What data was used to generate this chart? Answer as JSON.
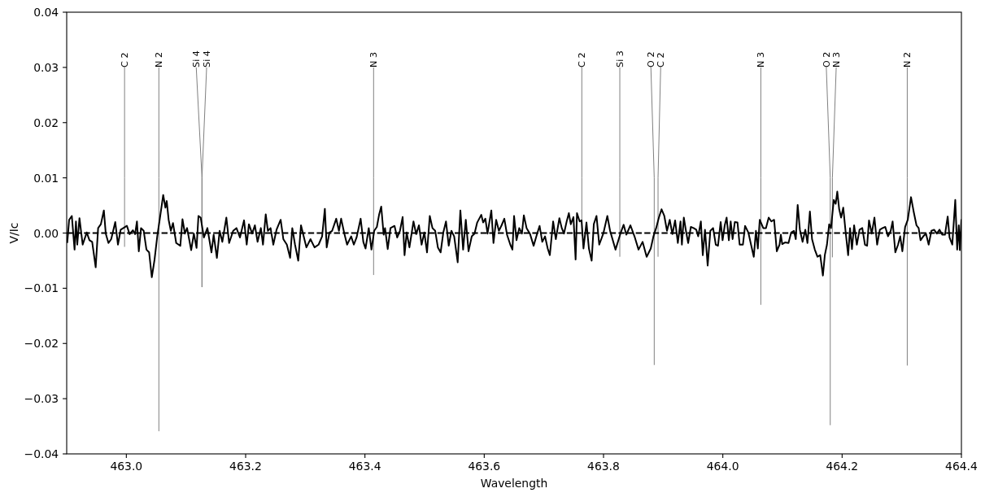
{
  "chart_data": {
    "type": "line",
    "xlabel": "Wavelength",
    "ylabel": "V/Ic",
    "xlim": [
      462.9,
      464.4
    ],
    "ylim": [
      -0.04,
      0.04
    ],
    "xticks": [
      {
        "value": 463.0,
        "label": "463.0"
      },
      {
        "value": 463.2,
        "label": "463.2"
      },
      {
        "value": 463.4,
        "label": "463.4"
      },
      {
        "value": 463.6,
        "label": "463.6"
      },
      {
        "value": 463.8,
        "label": "463.8"
      },
      {
        "value": 464.0,
        "label": "464.0"
      },
      {
        "value": 464.2,
        "label": "464.2"
      },
      {
        "value": 464.4,
        "label": "464.4"
      }
    ],
    "yticks": [
      {
        "value": -0.04,
        "label": "−0.04"
      },
      {
        "value": -0.03,
        "label": "−0.03"
      },
      {
        "value": -0.02,
        "label": "−0.02"
      },
      {
        "value": -0.01,
        "label": "−0.01"
      },
      {
        "value": 0,
        "label": "0.00"
      },
      {
        "value": 0.01,
        "label": "0.01"
      },
      {
        "value": 0.02,
        "label": "0.02"
      },
      {
        "value": 0.03,
        "label": "0.03"
      },
      {
        "value": 0.04,
        "label": "0.04"
      }
    ],
    "ref_lines": [
      {
        "axis": "y",
        "value": 0,
        "color": "#000000",
        "line_style": "dashed"
      }
    ],
    "series": [
      {
        "color": "#000000",
        "x": [
          462.9009,
          462.9041,
          462.9086,
          462.9132,
          462.9155,
          462.9177,
          462.9214,
          462.9268,
          462.9336,
          462.9382,
          462.9427,
          462.9486,
          462.9527,
          462.9573,
          462.9623,
          462.9655,
          462.97,
          462.9746,
          462.9814,
          462.9859,
          462.9905,
          462.995,
          463.0009,
          463.0055,
          463.0109,
          463.0146,
          463.0178,
          463.0209,
          463.0246,
          463.0291,
          463.0337,
          463.0382,
          463.0427,
          463.0473,
          463.0518,
          463.0564,
          463.0618,
          463.0655,
          463.0677,
          463.0709,
          463.0746,
          463.0782,
          463.0836,
          463.0905,
          463.0941,
          463.0982,
          463.1018,
          463.1087,
          463.1132,
          463.1177,
          463.1209,
          463.1246,
          463.13,
          463.1359,
          463.1427,
          463.1464,
          463.1518,
          463.1564,
          463.1609,
          463.1677,
          463.1723,
          463.1791,
          463.1846,
          463.1905,
          463.1973,
          463.2018,
          463.2055,
          463.2109,
          463.2155,
          463.22,
          463.2255,
          463.2291,
          463.2337,
          463.2373,
          463.2418,
          463.2464,
          463.2518,
          463.2587,
          463.2632,
          463.2691,
          463.2746,
          463.2782,
          463.2828,
          463.2882,
          463.2928,
          463.2973,
          463.3019,
          463.3087,
          463.3155,
          463.3223,
          463.3282,
          463.3328,
          463.3359,
          463.3405,
          463.345,
          463.3519,
          463.3564,
          463.3601,
          463.3655,
          463.3701,
          463.3769,
          463.3814,
          463.386,
          463.3928,
          463.3973,
          463.401,
          463.4064,
          463.4109,
          463.4155,
          463.42,
          463.4237,
          463.4273,
          463.4314,
          463.4337,
          463.4382,
          463.4428,
          463.4496,
          463.4541,
          463.4587,
          463.4632,
          463.4664,
          463.47,
          463.4746,
          463.4814,
          463.4859,
          463.4905,
          463.495,
          463.4996,
          463.5041,
          463.5087,
          463.5132,
          463.5178,
          463.5223,
          463.5269,
          463.5314,
          463.5359,
          463.5405,
          463.545,
          463.5496,
          463.5555,
          463.56,
          463.5646,
          463.5691,
          463.5737,
          463.5791,
          463.5837,
          463.5882,
          463.595,
          463.5982,
          463.6019,
          463.6055,
          463.6119,
          463.6155,
          463.62,
          463.6246,
          463.6291,
          463.6337,
          463.6382,
          463.6437,
          463.6473,
          463.65,
          463.6541,
          463.6587,
          463.6632,
          463.6664,
          463.671,
          463.6769,
          463.6828,
          463.6882,
          463.6928,
          463.6973,
          463.7019,
          463.7064,
          463.71,
          463.7155,
          463.72,
          463.726,
          463.73,
          463.7337,
          463.7382,
          463.7419,
          463.7451,
          463.7496,
          463.7532,
          463.7555,
          463.76,
          463.7632,
          463.7664,
          463.7714,
          463.7755,
          463.7801,
          463.7837,
          463.7882,
          463.7928,
          463.7996,
          463.8064,
          463.811,
          463.8201,
          463.8283,
          463.8337,
          463.8382,
          463.8451,
          463.8519,
          463.8587,
          463.8655,
          463.8723,
          463.8792,
          463.8837,
          463.8882,
          463.8928,
          463.8973,
          463.9019,
          463.9064,
          463.911,
          463.9155,
          463.92,
          463.9246,
          463.9291,
          463.9314,
          463.9346,
          463.9382,
          463.9419,
          463.9464,
          463.951,
          463.9555,
          463.9587,
          463.9632,
          463.9664,
          463.9701,
          463.9746,
          463.9791,
          463.9837,
          463.9882,
          463.9919,
          463.9964,
          463.9996,
          464.0032,
          464.0064,
          464.0101,
          464.0132,
          464.0164,
          464.0201,
          464.0246,
          464.0282,
          464.0337,
          464.0373,
          464.0428,
          464.0473,
          464.0519,
          464.0555,
          464.0587,
          464.0619,
          464.0678,
          464.0723,
          464.0769,
          464.0814,
          464.086,
          464.0905,
          464.0951,
          464.0973,
          464.0996,
          464.1042,
          464.1101,
          464.1146,
          464.1192,
          464.1223,
          464.1255,
          464.1292,
          464.1337,
          464.1383,
          464.1419,
          464.146,
          464.1496,
          464.1542,
          464.1587,
          464.1633,
          464.1678,
          464.171,
          464.1746,
          464.1783,
          464.1814,
          464.186,
          464.1892,
          464.1919,
          464.1951,
          464.1983,
          464.2019,
          464.2055,
          464.2101,
          464.2133,
          464.2165,
          464.2201,
          464.2247,
          464.2292,
          464.2338,
          464.2383,
          464.2419,
          464.2451,
          464.2497,
          464.2542,
          464.2587,
          464.2633,
          464.2678,
          464.2724,
          464.2769,
          464.2815,
          464.2847,
          464.2892,
          464.2938,
          464.2974,
          464.301,
          464.3056,
          464.3101,
          464.3155,
          464.3201,
          464.3247,
          464.3283,
          464.3315,
          464.336,
          464.3406,
          464.3451,
          464.3497,
          464.3542,
          464.3588,
          464.3633,
          464.3679,
          464.3724,
          464.377,
          464.3801,
          464.3847,
          464.3897,
          464.3929,
          464.3956,
          464.3974,
          464.4
        ],
        "values": [
          -0.0018,
          0.0024,
          0.0031,
          -0.003,
          0.0021,
          -0.0021,
          0.0027,
          -0.0021,
          0.0001,
          -0.0013,
          -0.0016,
          -0.0062,
          0.0009,
          0.0016,
          0.0041,
          -0.0001,
          -0.0018,
          -0.0011,
          0.002,
          -0.0021,
          0.0006,
          0.0009,
          0.0013,
          -0.0002,
          0.0005,
          -0.0002,
          0.0021,
          -0.0033,
          0.0009,
          0.0004,
          -0.003,
          -0.0035,
          -0.008,
          -0.0048,
          -0.0006,
          0.0028,
          0.0069,
          0.0046,
          0.0058,
          0.0024,
          0.0004,
          0.0018,
          -0.0018,
          -0.0023,
          0.0025,
          -0.0001,
          0.0009,
          -0.0031,
          -0.0001,
          -0.0027,
          0.0031,
          0.0028,
          -0.0008,
          0.0009,
          -0.0035,
          -0.0003,
          -0.0045,
          0.0004,
          -0.0016,
          0.0028,
          -0.0018,
          0.0004,
          0.0009,
          -0.0008,
          0.0023,
          -0.0021,
          0.0016,
          -0.0001,
          0.0014,
          -0.0016,
          0.0009,
          -0.0021,
          0.0034,
          0.0004,
          0.0009,
          -0.0021,
          0.0006,
          0.0024,
          -0.0011,
          -0.0021,
          -0.0045,
          0.0009,
          -0.0021,
          -0.005,
          0.0014,
          -0.0006,
          -0.0026,
          -0.0011,
          -0.0026,
          -0.0021,
          -0.0006,
          0.0044,
          -0.0026,
          0.0001,
          0.0004,
          0.0026,
          0.0004,
          0.0026,
          -0.0001,
          -0.0021,
          -0.0006,
          -0.0021,
          -0.0008,
          0.0026,
          -0.0016,
          -0.0028,
          0.0009,
          -0.003,
          0.0004,
          0.0011,
          0.0033,
          0.0048,
          -0.0003,
          0.0009,
          -0.0029,
          0.0009,
          0.0013,
          -0.0008,
          0.0004,
          0.0029,
          -0.004,
          0.0001,
          -0.0026,
          0.0021,
          -0.0002,
          0.0014,
          -0.0021,
          0.0001,
          -0.0035,
          0.0031,
          0.0009,
          0.0004,
          -0.0026,
          -0.0035,
          0.0001,
          0.0021,
          -0.0023,
          0.0004,
          -0.0006,
          -0.0053,
          0.0041,
          -0.003,
          0.0024,
          -0.0033,
          -0.0006,
          -0.0001,
          0.0019,
          0.0033,
          0.0019,
          0.0026,
          -0.0001,
          0.0041,
          -0.0018,
          0.0024,
          0.0004,
          0.0014,
          0.0026,
          -0.0003,
          -0.0021,
          -0.003,
          0.0031,
          -0.0013,
          0.0009,
          -0.0001,
          0.0032,
          0.0009,
          -0.0002,
          -0.0023,
          -0.0003,
          0.0013,
          -0.0016,
          -0.0006,
          -0.0028,
          -0.004,
          0.0021,
          -0.0011,
          0.0027,
          0.0009,
          -0.0001,
          0.0021,
          0.0036,
          0.0016,
          0.0029,
          -0.0048,
          0.0036,
          0.0021,
          0.0023,
          -0.0028,
          0.0019,
          -0.0028,
          -0.005,
          0.0016,
          0.0031,
          -0.0021,
          -0.0001,
          0.0031,
          0.0004,
          -0.003,
          -0.0001,
          0.0015,
          -0.0003,
          0.0014,
          -0.0006,
          -0.003,
          -0.0016,
          -0.0043,
          -0.0028,
          -0.0006,
          0.0009,
          0.0028,
          0.0043,
          0.0031,
          0.0004,
          0.0024,
          -0.0002,
          0.0023,
          -0.0018,
          0.0021,
          -0.0021,
          0.0028,
          0.0004,
          -0.0018,
          0.0011,
          0.0009,
          0.0006,
          -0.0006,
          0.0021,
          -0.004,
          0.0006,
          -0.0059,
          0.0004,
          0.0009,
          -0.0021,
          -0.0023,
          0.002,
          -0.0013,
          0.0014,
          0.0028,
          -0.0013,
          0.0021,
          -0.0011,
          0.002,
          0.0019,
          -0.0021,
          -0.0021,
          0.0013,
          0.0001,
          -0.0021,
          -0.0043,
          0.0004,
          -0.0028,
          0.0024,
          0.0009,
          0.0009,
          0.0028,
          0.0021,
          0.0024,
          -0.0033,
          -0.0021,
          -0.0003,
          -0.002,
          -0.0017,
          -0.0018,
          0.0001,
          0.0004,
          -0.0011,
          0.0051,
          0.0006,
          -0.0016,
          0.0006,
          -0.0018,
          0.0039,
          -0.0011,
          -0.003,
          -0.0043,
          -0.004,
          -0.0077,
          -0.004,
          -0.0021,
          0.0016,
          0.0009,
          0.006,
          0.0053,
          0.0075,
          0.0043,
          0.0028,
          0.0046,
          0.0006,
          -0.004,
          0.0009,
          -0.0029,
          0.0014,
          -0.0021,
          0.0006,
          0.0009,
          -0.0021,
          -0.0023,
          0.0023,
          -0.0001,
          0.0028,
          -0.0021,
          0.0006,
          0.0009,
          0.0011,
          -0.0006,
          0.0004,
          0.0021,
          -0.0035,
          -0.0021,
          -0.0006,
          -0.0033,
          0.0011,
          0.0024,
          0.0065,
          0.0038,
          0.0014,
          0.0009,
          -0.0013,
          -0.0006,
          -0.0001,
          -0.0021,
          0.0004,
          0.0006,
          -0.0001,
          0.0006,
          -0.0003,
          -0.0003,
          0.003,
          -0.0008,
          -0.0021,
          0.006,
          -0.003,
          0.0014,
          -0.0031,
          0.0025
        ]
      },
      {
        "type": "line",
        "color": "#808080",
        "x": [
          462.997,
          462.997,
          462.997
        ],
        "values": [
          0.03,
          0.01,
          -0.0025
        ]
      },
      {
        "type": "line",
        "color": "#808080",
        "x": [
          463.0545,
          463.0545,
          463.0545
        ],
        "values": [
          0.03,
          0.01,
          -0.0359
        ]
      },
      {
        "type": "line",
        "color": "#808080",
        "x": [
          463.1172,
          463.1268,
          463.1268
        ],
        "values": [
          0.03,
          0.01,
          -0.0098
        ]
      },
      {
        "type": "line",
        "color": "#808080",
        "x": [
          463.1346,
          463.1268,
          463.1268
        ],
        "values": [
          0.03,
          0.01,
          -0.0098
        ]
      },
      {
        "type": "line",
        "color": "#808080",
        "x": [
          463.4145,
          463.4145,
          463.4145
        ],
        "values": [
          0.03,
          0.01,
          -0.0076
        ]
      },
      {
        "type": "line",
        "color": "#808080",
        "x": [
          463.7636,
          463.7636,
          463.7636
        ],
        "values": [
          0.03,
          0.01,
          -0.0005
        ]
      },
      {
        "type": "line",
        "color": "#808080",
        "x": [
          463.8273,
          463.8273,
          463.8273
        ],
        "values": [
          0.03,
          0.01,
          -0.0043
        ]
      },
      {
        "type": "line",
        "color": "#808080",
        "x": [
          463.8794,
          463.885,
          463.885
        ],
        "values": [
          0.03,
          0.01,
          -0.0239
        ]
      },
      {
        "type": "line",
        "color": "#808080",
        "x": [
          463.8958,
          463.8914,
          463.8914
        ],
        "values": [
          0.03,
          0.01,
          -0.0043
        ]
      },
      {
        "type": "line",
        "color": "#808080",
        "x": [
          464.0637,
          464.0637,
          464.0637
        ],
        "values": [
          0.03,
          0.01,
          -0.013
        ]
      },
      {
        "type": "line",
        "color": "#808080",
        "x": [
          464.1735,
          464.1801,
          464.1801
        ],
        "values": [
          0.03,
          0.01,
          -0.0348
        ]
      },
      {
        "type": "line",
        "color": "#808080",
        "x": [
          464.1901,
          464.1837,
          464.1837
        ],
        "values": [
          0.03,
          0.01,
          -0.0044
        ]
      },
      {
        "type": "line",
        "color": "#808080",
        "x": [
          464.3092,
          464.3092,
          464.3092
        ],
        "values": [
          0.03,
          0.01,
          -0.024
        ]
      }
    ],
    "annotations": [
      {
        "text": "C 2",
        "x": 462.997,
        "y": 0.03
      },
      {
        "text": "N 2",
        "x": 463.0545,
        "y": 0.03
      },
      {
        "text": "Si 4",
        "x": 463.1172,
        "y": 0.03
      },
      {
        "text": "Si 4",
        "x": 463.1346,
        "y": 0.03
      },
      {
        "text": "N 3",
        "x": 463.4145,
        "y": 0.03
      },
      {
        "text": "C 2",
        "x": 463.7636,
        "y": 0.03
      },
      {
        "text": "Si 3",
        "x": 463.8273,
        "y": 0.03
      },
      {
        "text": "O 2",
        "x": 463.8794,
        "y": 0.03
      },
      {
        "text": "C 2",
        "x": 463.8958,
        "y": 0.03
      },
      {
        "text": "N 3",
        "x": 464.0637,
        "y": 0.03
      },
      {
        "text": "O 2",
        "x": 464.1735,
        "y": 0.03
      },
      {
        "text": "N 3",
        "x": 464.1901,
        "y": 0.03
      },
      {
        "text": "N 2",
        "x": 464.3092,
        "y": 0.03
      }
    ]
  }
}
